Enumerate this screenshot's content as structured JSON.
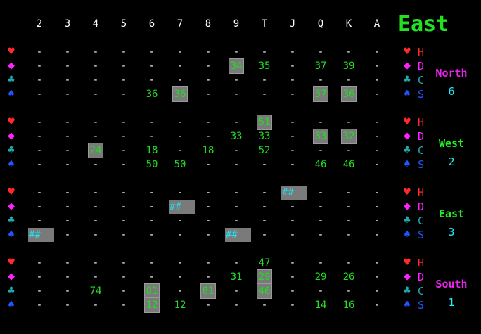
{
  "view_title": "East",
  "colors": {
    "background": "#000000",
    "heart": "#ff2a2a",
    "diamond": "#ff22ff",
    "club": "#22aaaa",
    "spade": "#2255ff",
    "value_green": "#22dd22",
    "hash_cyan": "#22e0f0",
    "name_magenta": "#ee22ee",
    "name_green": "#22ee22",
    "count_cyan": "#22eeff",
    "highlight_gray": "#7a7a7a"
  },
  "ranks": [
    "2",
    "3",
    "4",
    "5",
    "6",
    "7",
    "8",
    "9",
    "T",
    "J",
    "Q",
    "K",
    "A"
  ],
  "players": [
    {
      "name": "North",
      "name_color": "#ee22ee",
      "count": "6",
      "rows": [
        {
          "suit": "H",
          "icon": "heart-icon",
          "cells": [
            {
              "v": "-"
            },
            {
              "v": "-"
            },
            {
              "v": "-"
            },
            {
              "v": "-"
            },
            {
              "v": "-"
            },
            {
              "v": "-"
            },
            {
              "v": "-"
            },
            {
              "v": "-"
            },
            {
              "v": "-"
            },
            {
              "v": "-"
            },
            {
              "v": "-"
            },
            {
              "v": "-"
            },
            {
              "v": "-"
            }
          ]
        },
        {
          "suit": "D",
          "icon": "diamond-icon",
          "cells": [
            {
              "v": "-"
            },
            {
              "v": "-"
            },
            {
              "v": "-"
            },
            {
              "v": "-"
            },
            {
              "v": "-"
            },
            {
              "v": "-"
            },
            {
              "v": "-"
            },
            {
              "v": "34",
              "hl": true
            },
            {
              "v": "35"
            },
            {
              "v": "-"
            },
            {
              "v": "37"
            },
            {
              "v": "39"
            },
            {
              "v": "-"
            }
          ]
        },
        {
          "suit": "C",
          "icon": "club-icon",
          "cells": [
            {
              "v": "-"
            },
            {
              "v": "-"
            },
            {
              "v": "-"
            },
            {
              "v": "-"
            },
            {
              "v": "-"
            },
            {
              "v": "-"
            },
            {
              "v": "-"
            },
            {
              "v": "-"
            },
            {
              "v": "-"
            },
            {
              "v": "-"
            },
            {
              "v": "-"
            },
            {
              "v": "-"
            },
            {
              "v": "-"
            }
          ]
        },
        {
          "suit": "S",
          "icon": "spade-icon",
          "cells": [
            {
              "v": "-"
            },
            {
              "v": "-"
            },
            {
              "v": "-"
            },
            {
              "v": "-"
            },
            {
              "v": "36"
            },
            {
              "v": "36",
              "hl": true
            },
            {
              "v": "-"
            },
            {
              "v": "-"
            },
            {
              "v": "-"
            },
            {
              "v": "-"
            },
            {
              "v": "37",
              "hl": true
            },
            {
              "v": "36",
              "hl": true
            },
            {
              "v": "-"
            }
          ]
        }
      ]
    },
    {
      "name": "West",
      "name_color": "#22ee22",
      "count": "2",
      "rows": [
        {
          "suit": "H",
          "icon": "heart-icon",
          "cells": [
            {
              "v": "-"
            },
            {
              "v": "-"
            },
            {
              "v": "-"
            },
            {
              "v": "-"
            },
            {
              "v": "-"
            },
            {
              "v": "-"
            },
            {
              "v": "-"
            },
            {
              "v": "-"
            },
            {
              "v": "51",
              "hl": true
            },
            {
              "v": "-"
            },
            {
              "v": "-"
            },
            {
              "v": "-"
            },
            {
              "v": "-"
            }
          ]
        },
        {
          "suit": "D",
          "icon": "diamond-icon",
          "cells": [
            {
              "v": "-"
            },
            {
              "v": "-"
            },
            {
              "v": "-"
            },
            {
              "v": "-"
            },
            {
              "v": "-"
            },
            {
              "v": "-"
            },
            {
              "v": "-"
            },
            {
              "v": "33"
            },
            {
              "v": "33"
            },
            {
              "v": "-"
            },
            {
              "v": "33",
              "hl": true
            },
            {
              "v": "32",
              "hl": true
            },
            {
              "v": "-"
            }
          ]
        },
        {
          "suit": "C",
          "icon": "club-icon",
          "cells": [
            {
              "v": "-"
            },
            {
              "v": "-"
            },
            {
              "v": "24",
              "hl": true
            },
            {
              "v": "-"
            },
            {
              "v": "18"
            },
            {
              "v": "-"
            },
            {
              "v": "18"
            },
            {
              "v": "-"
            },
            {
              "v": "52"
            },
            {
              "v": "-"
            },
            {
              "v": "-"
            },
            {
              "v": "-"
            },
            {
              "v": "-"
            }
          ]
        },
        {
          "suit": "S",
          "icon": "spade-icon",
          "cells": [
            {
              "v": "-"
            },
            {
              "v": "-"
            },
            {
              "v": "-"
            },
            {
              "v": "-"
            },
            {
              "v": "50"
            },
            {
              "v": "50"
            },
            {
              "v": "-"
            },
            {
              "v": "-"
            },
            {
              "v": "-"
            },
            {
              "v": "-"
            },
            {
              "v": "46"
            },
            {
              "v": "46"
            },
            {
              "v": "-"
            }
          ]
        }
      ]
    },
    {
      "name": "East",
      "name_color": "#22ee22",
      "count": "3",
      "rows": [
        {
          "suit": "H",
          "icon": "heart-icon",
          "cells": [
            {
              "v": "-"
            },
            {
              "v": "-"
            },
            {
              "v": "-"
            },
            {
              "v": "-"
            },
            {
              "v": "-"
            },
            {
              "v": "-"
            },
            {
              "v": "-"
            },
            {
              "v": "-"
            },
            {
              "v": "-"
            },
            {
              "v": "##",
              "hash": true
            },
            {
              "v": "-"
            },
            {
              "v": "-"
            },
            {
              "v": "-"
            }
          ]
        },
        {
          "suit": "D",
          "icon": "diamond-icon",
          "cells": [
            {
              "v": "-"
            },
            {
              "v": "-"
            },
            {
              "v": "-"
            },
            {
              "v": "-"
            },
            {
              "v": "-"
            },
            {
              "v": "##",
              "hash": true
            },
            {
              "v": "-"
            },
            {
              "v": "-"
            },
            {
              "v": "-"
            },
            {
              "v": "-"
            },
            {
              "v": "-"
            },
            {
              "v": "-"
            },
            {
              "v": "-"
            }
          ]
        },
        {
          "suit": "C",
          "icon": "club-icon",
          "cells": [
            {
              "v": "-"
            },
            {
              "v": "-"
            },
            {
              "v": "-"
            },
            {
              "v": "-"
            },
            {
              "v": "-"
            },
            {
              "v": "-"
            },
            {
              "v": "-"
            },
            {
              "v": "-"
            },
            {
              "v": "-"
            },
            {
              "v": "-"
            },
            {
              "v": "-"
            },
            {
              "v": "-"
            },
            {
              "v": "-"
            }
          ]
        },
        {
          "suit": "S",
          "icon": "spade-icon",
          "cells": [
            {
              "v": "##",
              "hash": true
            },
            {
              "v": "-"
            },
            {
              "v": "-"
            },
            {
              "v": "-"
            },
            {
              "v": "-"
            },
            {
              "v": "-"
            },
            {
              "v": "-"
            },
            {
              "v": "##",
              "hash": true
            },
            {
              "v": "-"
            },
            {
              "v": "-"
            },
            {
              "v": "-"
            },
            {
              "v": "-"
            },
            {
              "v": "-"
            }
          ]
        }
      ]
    },
    {
      "name": "South",
      "name_color": "#ee22ee",
      "count": "1",
      "rows": [
        {
          "suit": "H",
          "icon": "heart-icon",
          "cells": [
            {
              "v": "-"
            },
            {
              "v": "-"
            },
            {
              "v": "-"
            },
            {
              "v": "-"
            },
            {
              "v": "-"
            },
            {
              "v": "-"
            },
            {
              "v": "-"
            },
            {
              "v": "-"
            },
            {
              "v": "47"
            },
            {
              "v": "-"
            },
            {
              "v": "-"
            },
            {
              "v": "-"
            },
            {
              "v": "-"
            }
          ]
        },
        {
          "suit": "D",
          "icon": "diamond-icon",
          "cells": [
            {
              "v": "-"
            },
            {
              "v": "-"
            },
            {
              "v": "-"
            },
            {
              "v": "-"
            },
            {
              "v": "-"
            },
            {
              "v": "-"
            },
            {
              "v": "-"
            },
            {
              "v": "31"
            },
            {
              "v": "29",
              "hl": true
            },
            {
              "v": "-"
            },
            {
              "v": "29"
            },
            {
              "v": "26"
            },
            {
              "v": "-"
            }
          ]
        },
        {
          "suit": "C",
          "icon": "club-icon",
          "cells": [
            {
              "v": "-"
            },
            {
              "v": "-"
            },
            {
              "v": "74"
            },
            {
              "v": "-"
            },
            {
              "v": "81",
              "hl": true
            },
            {
              "v": "-"
            },
            {
              "v": "81",
              "hl": true
            },
            {
              "v": "-"
            },
            {
              "v": "46",
              "hl": true
            },
            {
              "v": "-"
            },
            {
              "v": "-"
            },
            {
              "v": "-"
            },
            {
              "v": "-"
            }
          ]
        },
        {
          "suit": "S",
          "icon": "spade-icon",
          "cells": [
            {
              "v": "-"
            },
            {
              "v": "-"
            },
            {
              "v": "-"
            },
            {
              "v": "-"
            },
            {
              "v": "12",
              "hl": true
            },
            {
              "v": "12"
            },
            {
              "v": "-"
            },
            {
              "v": "-"
            },
            {
              "v": "-"
            },
            {
              "v": "-"
            },
            {
              "v": "14"
            },
            {
              "v": "16"
            },
            {
              "v": "-"
            }
          ]
        }
      ]
    }
  ]
}
